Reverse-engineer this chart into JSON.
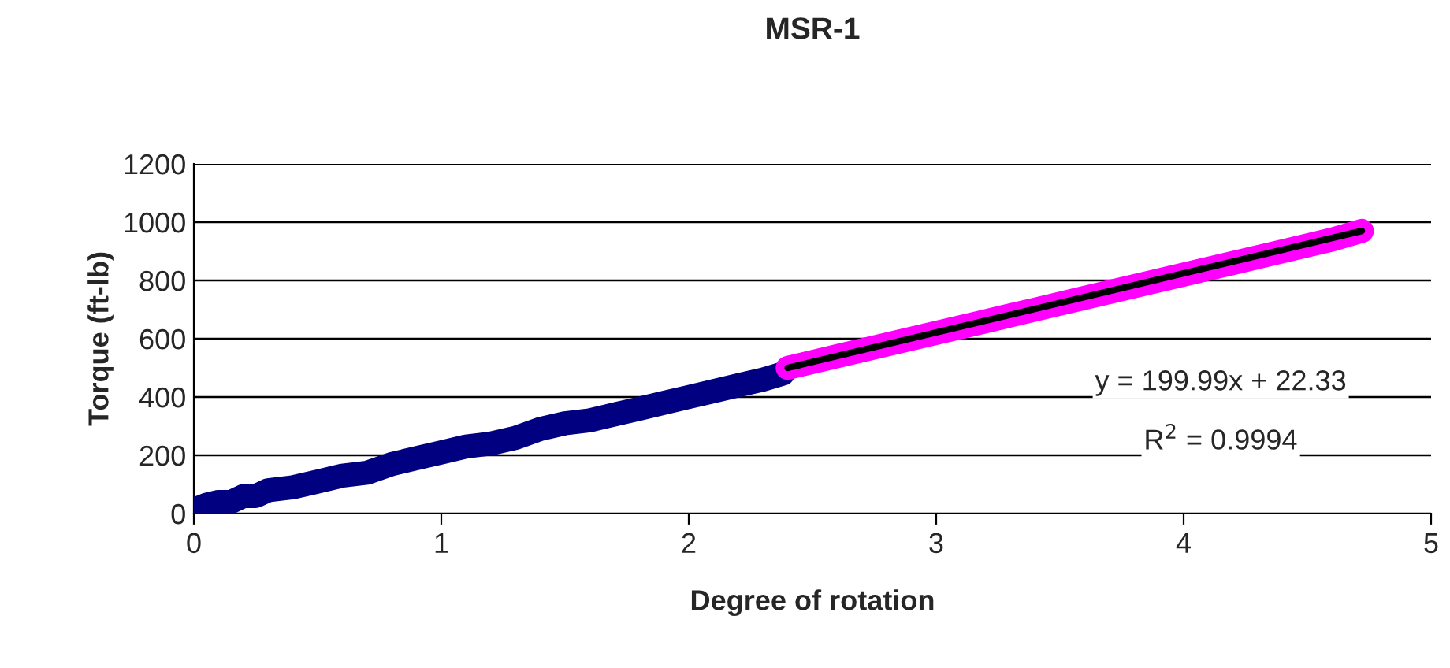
{
  "chart_data": {
    "type": "line",
    "title": "MSR-1",
    "xlabel": "Degree of rotation",
    "ylabel": "Torque (ft-lb)",
    "xlim": [
      0,
      5
    ],
    "xticks": [
      0,
      1,
      2,
      3,
      4,
      5
    ],
    "ylim": [
      0,
      1200
    ],
    "yticks": [
      0,
      200,
      400,
      600,
      800,
      1000,
      1200
    ],
    "grid": "y",
    "legend": false,
    "series": [
      {
        "color": "#000080",
        "x": [
          0,
          0.02,
          0.05,
          0.1,
          0.15,
          0.2,
          0.25,
          0.3,
          0.4,
          0.5,
          0.6,
          0.7,
          0.8,
          0.9,
          1.0,
          1.1,
          1.2,
          1.3,
          1.4,
          1.5,
          1.6,
          1.7,
          1.8,
          1.9,
          2.0,
          2.1,
          2.2,
          2.3,
          2.38
        ],
        "values": [
          10,
          20,
          30,
          40,
          40,
          60,
          60,
          80,
          90,
          110,
          130,
          140,
          170,
          190,
          210,
          230,
          240,
          260,
          290,
          310,
          320,
          340,
          360,
          380,
          400,
          420,
          440,
          460,
          480
        ]
      },
      {
        "color": "#ff00ff",
        "x": [
          2.4,
          2.6,
          2.8,
          3.0,
          3.2,
          3.4,
          3.6,
          3.8,
          4.0,
          4.2,
          4.4,
          4.6,
          4.72
        ],
        "values": [
          500,
          540,
          580,
          620,
          660,
          700,
          740,
          780,
          820,
          860,
          900,
          940,
          970
        ]
      },
      {
        "color": "#000000",
        "x": [
          2.4,
          4.72
        ],
        "values": [
          500,
          970
        ]
      }
    ],
    "annotations": [
      "y = 199.99x + 22.33",
      "R$^{2}$ = 0.9994"
    ]
  }
}
